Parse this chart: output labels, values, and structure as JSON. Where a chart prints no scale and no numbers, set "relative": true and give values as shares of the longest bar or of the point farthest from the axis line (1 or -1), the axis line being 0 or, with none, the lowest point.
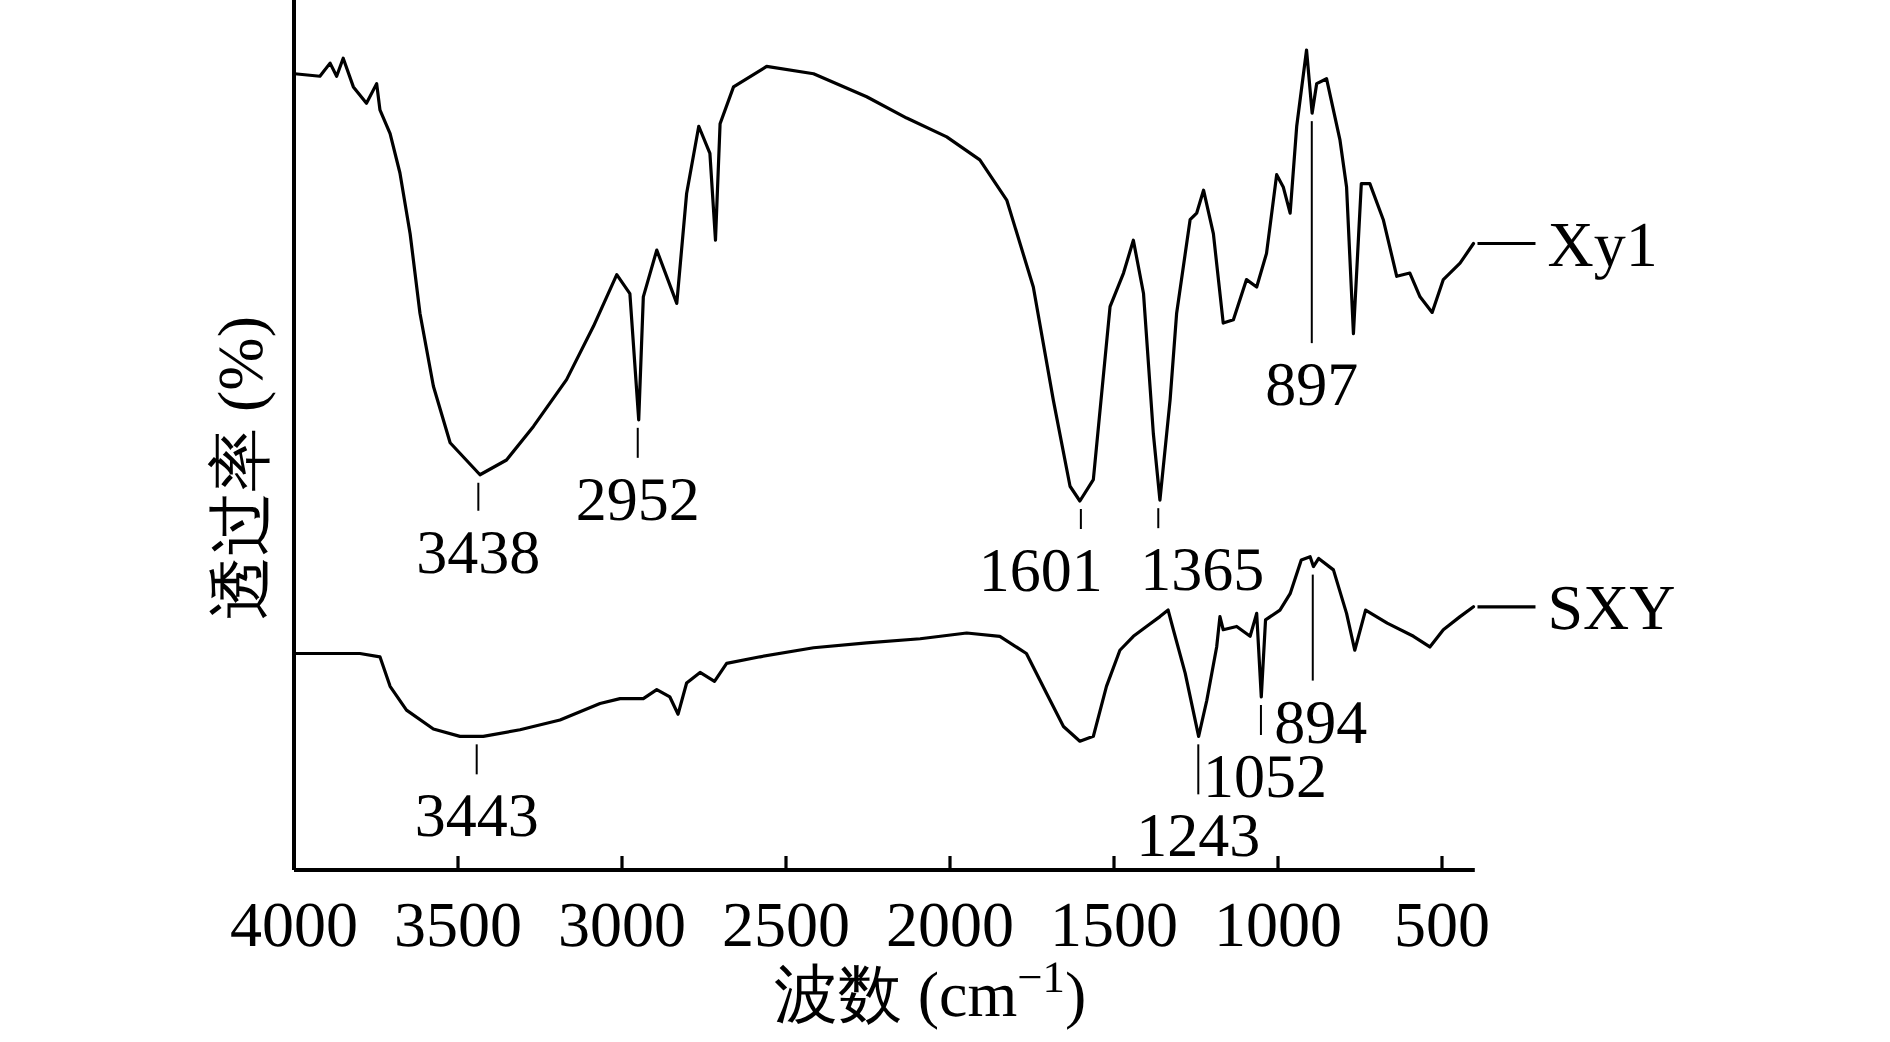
{
  "chart_data": {
    "type": "line",
    "relative": true,
    "legend": "right",
    "xlabel": "波数 (cm$^{−1}$)",
    "ylabel": "透过率 (%)",
    "xlim": [
      4000,
      400
    ],
    "xticks": [
      4000,
      3500,
      3000,
      2500,
      2000,
      1500,
      1000,
      500
    ],
    "series": [
      {
        "name": "Xy1",
        "color": "#000000",
        "x": [
          3998,
          3921,
          3890,
          3870,
          3850,
          3819,
          3779,
          3748,
          3738,
          3707,
          3677,
          3646,
          3616,
          3575,
          3524,
          3433,
          3352,
          3270,
          3169,
          3087,
          3016,
          2976,
          2949,
          2935,
          2894,
          2833,
          2803,
          2766,
          2732,
          2715,
          2701,
          2660,
          2559,
          2416,
          2254,
          2132,
          2010,
          1909,
          1827,
          1746,
          1685,
          1634,
          1604,
          1563,
          1512,
          1471,
          1441,
          1410,
          1380,
          1360,
          1329,
          1309,
          1268,
          1248,
          1227,
          1197,
          1167,
          1136,
          1096,
          1065,
          1035,
          1004,
          984,
          963,
          943,
          913,
          896,
          882,
          852,
          811,
          791,
          770,
          746,
          720,
          679,
          638,
          598,
          567,
          530,
          496,
          445,
          404
        ],
        "values": [
          0.971,
          0.968,
          0.984,
          0.968,
          0.99,
          0.955,
          0.935,
          0.959,
          0.927,
          0.898,
          0.85,
          0.776,
          0.679,
          0.59,
          0.521,
          0.482,
          0.5,
          0.541,
          0.598,
          0.663,
          0.726,
          0.703,
          0.549,
          0.699,
          0.756,
          0.691,
          0.825,
          0.907,
          0.874,
          0.768,
          0.91,
          0.955,
          0.98,
          0.971,
          0.943,
          0.917,
          0.894,
          0.866,
          0.817,
          0.711,
          0.573,
          0.468,
          0.45,
          0.476,
          0.687,
          0.728,
          0.768,
          0.703,
          0.532,
          0.451,
          0.573,
          0.679,
          0.793,
          0.801,
          0.829,
          0.776,
          0.667,
          0.671,
          0.72,
          0.711,
          0.752,
          0.848,
          0.833,
          0.801,
          0.907,
          1.0,
          0.923,
          0.959,
          0.965,
          0.89,
          0.833,
          0.654,
          0.837,
          0.837,
          0.793,
          0.724,
          0.728,
          0.699,
          0.68,
          0.72,
          0.74,
          0.764
        ]
      },
      {
        "name": "SXY",
        "color": "#000000",
        "x": [
          3998,
          3799,
          3738,
          3707,
          3657,
          3575,
          3494,
          3423,
          3311,
          3189,
          3067,
          3006,
          2935,
          2894,
          2854,
          2829,
          2803,
          2762,
          2718,
          2681,
          2579,
          2416,
          2254,
          2091,
          1949,
          1848,
          1767,
          1705,
          1654,
          1604,
          1563,
          1523,
          1482,
          1441,
          1401,
          1360,
          1335,
          1319,
          1283,
          1242,
          1217,
          1187,
          1177,
          1167,
          1126,
          1085,
          1065,
          1051,
          1038,
          994,
          963,
          929,
          902,
          892,
          876,
          831,
          791,
          766,
          733,
          667,
          587,
          537,
          496,
          445,
          404
        ],
        "values": [
          0.264,
          0.264,
          0.26,
          0.224,
          0.195,
          0.172,
          0.163,
          0.163,
          0.171,
          0.183,
          0.203,
          0.209,
          0.209,
          0.22,
          0.211,
          0.19,
          0.228,
          0.241,
          0.23,
          0.252,
          0.26,
          0.271,
          0.277,
          0.282,
          0.289,
          0.285,
          0.264,
          0.215,
          0.175,
          0.157,
          0.163,
          0.224,
          0.268,
          0.285,
          0.297,
          0.309,
          0.317,
          0.293,
          0.24,
          0.163,
          0.207,
          0.272,
          0.309,
          0.293,
          0.297,
          0.285,
          0.313,
          0.211,
          0.305,
          0.317,
          0.337,
          0.378,
          0.382,
          0.37,
          0.38,
          0.366,
          0.313,
          0.268,
          0.317,
          0.301,
          0.285,
          0.272,
          0.293,
          0.309,
          0.321
        ]
      }
    ],
    "annotations": [
      {
        "text": "3438",
        "x": 3438,
        "y": 0.482
      },
      {
        "text": "2952",
        "x": 2952,
        "y": 0.549
      },
      {
        "text": "1601",
        "x": 1601,
        "y": 0.45
      },
      {
        "text": "1365",
        "x": 1365,
        "y": 0.451
      },
      {
        "text": "897",
        "x": 897,
        "y": 0.923
      },
      {
        "text": "3443",
        "x": 3443,
        "y": 0.163
      },
      {
        "text": "1243",
        "x": 1243,
        "y": 0.163
      },
      {
        "text": "1052",
        "x": 1052,
        "y": 0.211
      },
      {
        "text": "894",
        "x": 894,
        "y": 0.37
      }
    ]
  }
}
